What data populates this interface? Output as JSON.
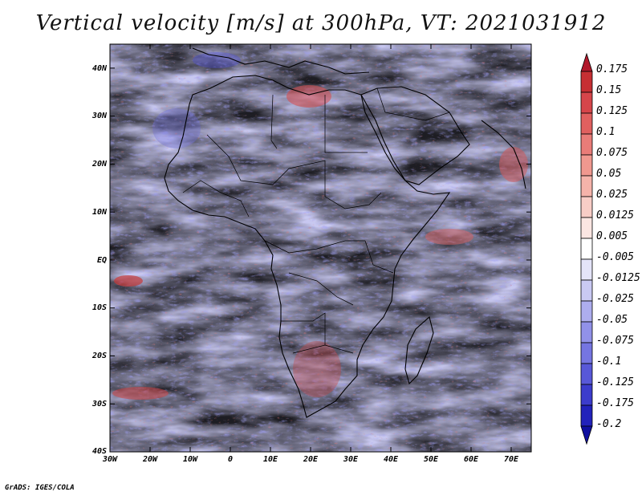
{
  "title": "Vertical velocity [m/s] at 300hPa, VT: 2021031912",
  "credit": "GrADS: IGES/COLA",
  "map": {
    "region": "Africa",
    "variable": "Vertical velocity",
    "units": "m/s",
    "level": "300hPa",
    "valid_time": "2021031912"
  },
  "axes": {
    "lat_labels": [
      "40N",
      "30N",
      "20N",
      "10N",
      "EQ",
      "10S",
      "20S",
      "30S",
      "40S"
    ],
    "lon_labels": [
      "30W",
      "20W",
      "10W",
      "0",
      "10E",
      "20E",
      "30E",
      "40E",
      "50E",
      "60E",
      "70E"
    ],
    "lat_range": [
      -40,
      45
    ],
    "lon_range": [
      -30,
      75
    ]
  },
  "colorbar": {
    "labels": [
      "0.175",
      "0.15",
      "0.125",
      "0.1",
      "0.075",
      "0.05",
      "0.025",
      "0.0125",
      "0.005",
      "-0.005",
      "-0.0125",
      "-0.025",
      "-0.05",
      "-0.075",
      "-0.1",
      "-0.125",
      "-0.175",
      "-0.2"
    ],
    "colors": [
      "#b2182b",
      "#c62f33",
      "#d6454a",
      "#e0605f",
      "#e97c78",
      "#f0988f",
      "#f5b3aa",
      "#f8cdc6",
      "#fbe6e2",
      "#ffffff",
      "#e4e4f8",
      "#c9c9f3",
      "#adadee",
      "#9191e8",
      "#7575e1",
      "#5858d8",
      "#3c3ccc",
      "#2222bb",
      "#1010a0"
    ]
  }
}
